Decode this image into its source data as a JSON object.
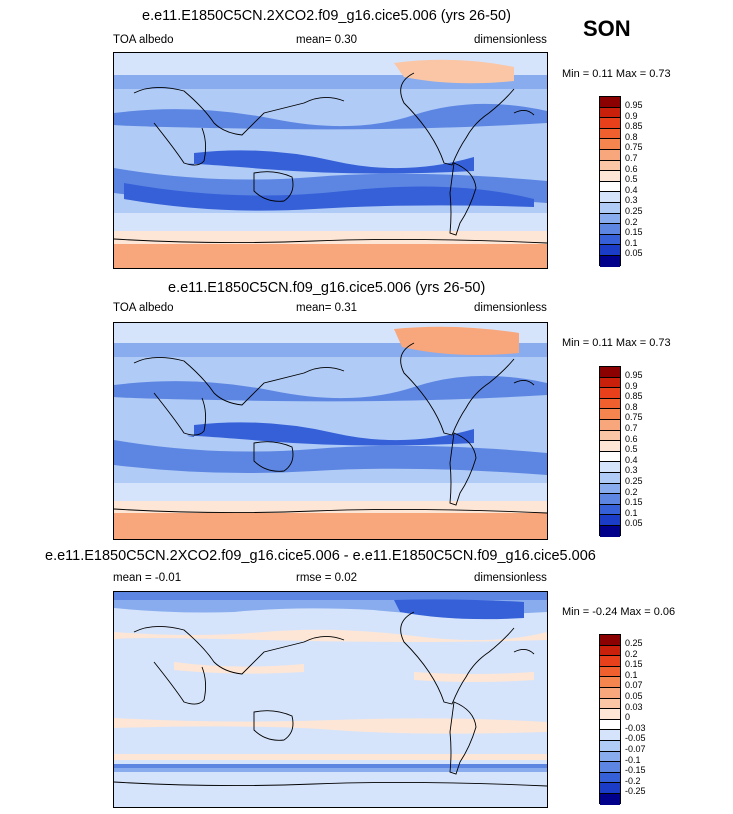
{
  "season": "SON",
  "panels": [
    {
      "title": "e.e11.E1850C5CN.2XCO2.f09_g16.cice5.006 (yrs 26-50)",
      "left": "TOA albedo",
      "middle": "mean=   0.30",
      "right": "dimensionless",
      "minmax": "Min =   0.11 Max =   0.73",
      "levels": [
        "0.95",
        "0.9",
        "0.85",
        "0.8",
        "0.75",
        "0.7",
        "0.6",
        "0.5",
        "0.4",
        "0.3",
        "0.25",
        "0.2",
        "0.15",
        "0.1",
        "0.05"
      ],
      "colors": [
        "#8b0000",
        "#c8200a",
        "#e8401a",
        "#f0602e",
        "#f5854f",
        "#f8a67c",
        "#fac6a6",
        "#fde6d6",
        "#ffffff",
        "#d6e4fb",
        "#b0cbf6",
        "#89acee",
        "#5d86e2",
        "#3560d8",
        "#1a3cc6",
        "#00008b"
      ]
    },
    {
      "title": "e.e11.E1850C5CN.f09_g16.cice5.006 (yrs 26-50)",
      "left": "TOA albedo",
      "middle": "mean=   0.31",
      "right": "dimensionless",
      "minmax": "Min =   0.11 Max =   0.73",
      "levels": [
        "0.95",
        "0.9",
        "0.85",
        "0.8",
        "0.75",
        "0.7",
        "0.6",
        "0.5",
        "0.4",
        "0.3",
        "0.25",
        "0.2",
        "0.15",
        "0.1",
        "0.05"
      ],
      "colors": [
        "#8b0000",
        "#c8200a",
        "#e8401a",
        "#f0602e",
        "#f5854f",
        "#f8a67c",
        "#fac6a6",
        "#fde6d6",
        "#ffffff",
        "#d6e4fb",
        "#b0cbf6",
        "#89acee",
        "#5d86e2",
        "#3560d8",
        "#1a3cc6",
        "#00008b"
      ]
    },
    {
      "title": "e.e11.E1850C5CN.2XCO2.f09_g16.cice5.006 - e.e11.E1850C5CN.f09_g16.cice5.006",
      "left": "mean =  -0.01",
      "middle": "rmse =   0.02",
      "right": "dimensionless",
      "minmax": "Min =  -0.24 Max =   0.06",
      "levels": [
        "0.25",
        "0.2",
        "0.15",
        "0.1",
        "0.07",
        "0.05",
        "0.03",
        "0",
        "-0.03",
        "-0.05",
        "-0.07",
        "-0.1",
        "-0.15",
        "-0.2",
        "-0.25"
      ],
      "colors": [
        "#8b0000",
        "#c8200a",
        "#e8401a",
        "#f0602e",
        "#f5854f",
        "#f8a67c",
        "#fac6a6",
        "#fde6d6",
        "#ffffff",
        "#d6e4fb",
        "#b0cbf6",
        "#89acee",
        "#5d86e2",
        "#3560d8",
        "#1a3cc6",
        "#00008b"
      ]
    }
  ]
}
